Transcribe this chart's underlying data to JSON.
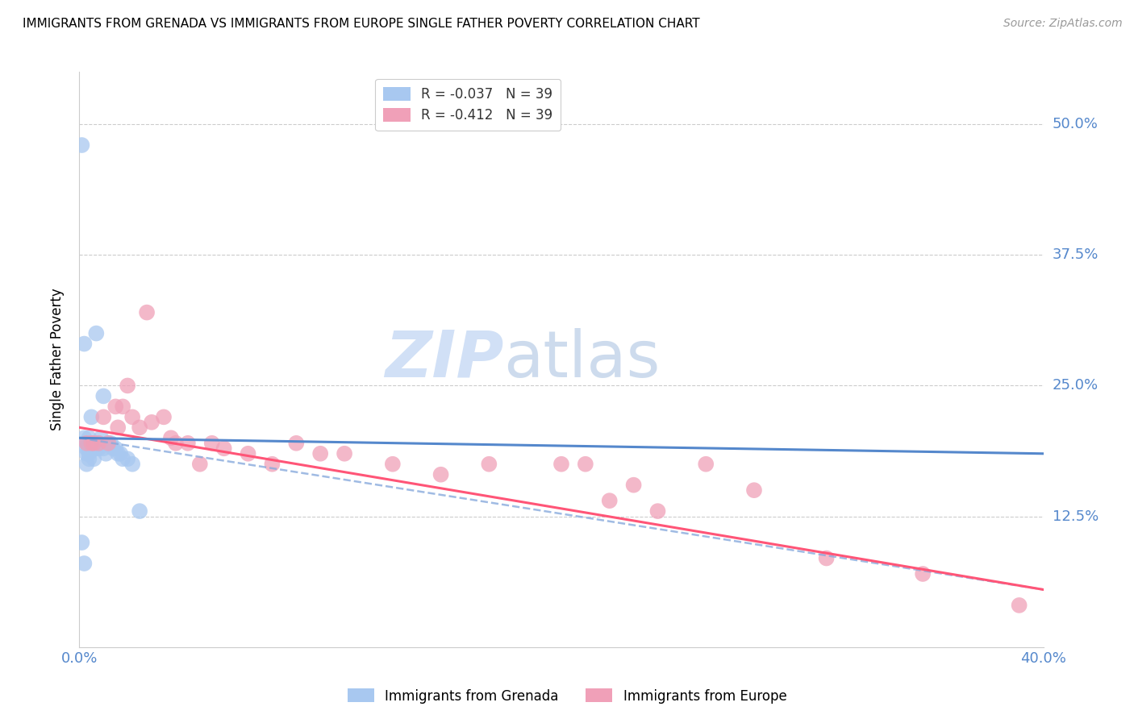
{
  "title": "IMMIGRANTS FROM GRENADA VS IMMIGRANTS FROM EUROPE SINGLE FATHER POVERTY CORRELATION CHART",
  "source": "Source: ZipAtlas.com",
  "ylabel": "Single Father Poverty",
  "ytick_labels": [
    "50.0%",
    "37.5%",
    "25.0%",
    "12.5%"
  ],
  "ytick_values": [
    0.5,
    0.375,
    0.25,
    0.125
  ],
  "xlim": [
    0.0,
    0.4
  ],
  "ylim": [
    0.0,
    0.55
  ],
  "grenada_color": "#a8c8f0",
  "europe_color": "#f0a0b8",
  "trendline_grenada_solid_color": "#5588cc",
  "trendline_europe_solid_color": "#ff5577",
  "trendline_grenada_dashed_color": "#88aadd",
  "watermark_zip_color": "#ccddf5",
  "watermark_atlas_color": "#c8d8ec",
  "grenada_x": [
    0.001,
    0.001,
    0.002,
    0.002,
    0.002,
    0.003,
    0.003,
    0.003,
    0.003,
    0.004,
    0.004,
    0.004,
    0.004,
    0.004,
    0.005,
    0.005,
    0.005,
    0.006,
    0.006,
    0.006,
    0.007,
    0.007,
    0.007,
    0.008,
    0.008,
    0.009,
    0.01,
    0.01,
    0.011,
    0.012,
    0.013,
    0.014,
    0.015,
    0.016,
    0.017,
    0.018,
    0.02,
    0.022,
    0.025
  ],
  "grenada_y": [
    0.48,
    0.1,
    0.29,
    0.08,
    0.2,
    0.195,
    0.19,
    0.185,
    0.175,
    0.2,
    0.195,
    0.19,
    0.185,
    0.18,
    0.22,
    0.195,
    0.19,
    0.195,
    0.19,
    0.18,
    0.3,
    0.195,
    0.19,
    0.195,
    0.19,
    0.2,
    0.24,
    0.19,
    0.185,
    0.195,
    0.195,
    0.19,
    0.19,
    0.185,
    0.185,
    0.18,
    0.18,
    0.175,
    0.13
  ],
  "europe_x": [
    0.003,
    0.005,
    0.006,
    0.008,
    0.01,
    0.012,
    0.015,
    0.016,
    0.018,
    0.02,
    0.022,
    0.025,
    0.028,
    0.03,
    0.035,
    0.038,
    0.04,
    0.045,
    0.05,
    0.055,
    0.06,
    0.07,
    0.08,
    0.09,
    0.1,
    0.11,
    0.13,
    0.15,
    0.17,
    0.2,
    0.21,
    0.22,
    0.23,
    0.24,
    0.26,
    0.28,
    0.31,
    0.35,
    0.39
  ],
  "europe_y": [
    0.195,
    0.195,
    0.195,
    0.195,
    0.22,
    0.195,
    0.23,
    0.21,
    0.23,
    0.25,
    0.22,
    0.21,
    0.32,
    0.215,
    0.22,
    0.2,
    0.195,
    0.195,
    0.175,
    0.195,
    0.19,
    0.185,
    0.175,
    0.195,
    0.185,
    0.185,
    0.175,
    0.165,
    0.175,
    0.175,
    0.175,
    0.14,
    0.155,
    0.13,
    0.175,
    0.15,
    0.085,
    0.07,
    0.04
  ],
  "grenada_R": -0.037,
  "grenada_N": 39,
  "europe_R": -0.412,
  "europe_N": 39,
  "legend_label1": "R = -0.037   N = 39",
  "legend_label2": "R = -0.412   N = 39",
  "bottom_label1": "Immigrants from Grenada",
  "bottom_label2": "Immigrants from Europe"
}
